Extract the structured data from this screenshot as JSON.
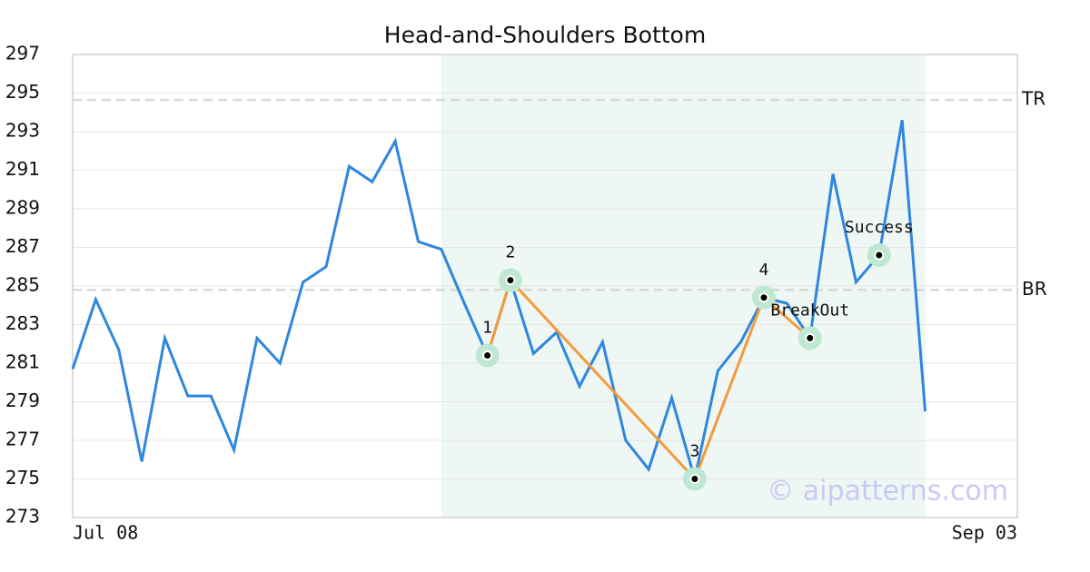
{
  "chart_data": {
    "type": "line",
    "title": "Head-and-Shoulders Bottom",
    "categories": [
      "Jul 08",
      null,
      null,
      null,
      null,
      null,
      null,
      null,
      null,
      null,
      null,
      null,
      null,
      null,
      null,
      null,
      null,
      null,
      null,
      null,
      null,
      null,
      null,
      null,
      null,
      null,
      null,
      null,
      null,
      null,
      null,
      null,
      null,
      null,
      null,
      null,
      null,
      null,
      null,
      null,
      null,
      "Sep 03"
    ],
    "series": [
      {
        "color": "#2e86de",
        "values": [
          280.7,
          284.3,
          281.7,
          275.9,
          282.3,
          279.3,
          279.3,
          276.5,
          282.3,
          281.0,
          285.2,
          286.0,
          291.2,
          290.4,
          292.5,
          287.3,
          286.9,
          284.1,
          281.4,
          285.3,
          281.5,
          282.6,
          279.8,
          282.1,
          277.0,
          275.5,
          279.2,
          275.0,
          280.6,
          282.1,
          284.4,
          284.1,
          282.3,
          290.8,
          285.2,
          286.6,
          293.6,
          278.5,
          null,
          null,
          null,
          null
        ]
      }
    ],
    "pattern": {
      "color": "#f59a3c",
      "points": [
        {
          "label": "1",
          "x": 18,
          "value": 281.4
        },
        {
          "label": "2",
          "x": 19,
          "value": 285.3
        },
        {
          "label": "3",
          "x": 27,
          "value": 275.0
        },
        {
          "label": "4",
          "x": 30,
          "value": 284.4
        },
        {
          "label": "BreakOut",
          "x": 32,
          "value": 282.3
        }
      ]
    },
    "success": {
      "label": "Success",
      "x": 35,
      "value": 286.6
    },
    "levels": [
      {
        "label": "TR",
        "value": 294.65
      },
      {
        "label": "BR",
        "value": 284.8
      }
    ],
    "shaded": {
      "from": 16,
      "to": 37,
      "color": "#eef7f3"
    },
    "watermark": "© aipatterns.com",
    "ylim": [
      273,
      297
    ],
    "yticks": [
      273,
      275,
      277,
      279,
      281,
      283,
      285,
      287,
      289,
      291,
      293,
      295,
      297
    ],
    "grid": true
  }
}
